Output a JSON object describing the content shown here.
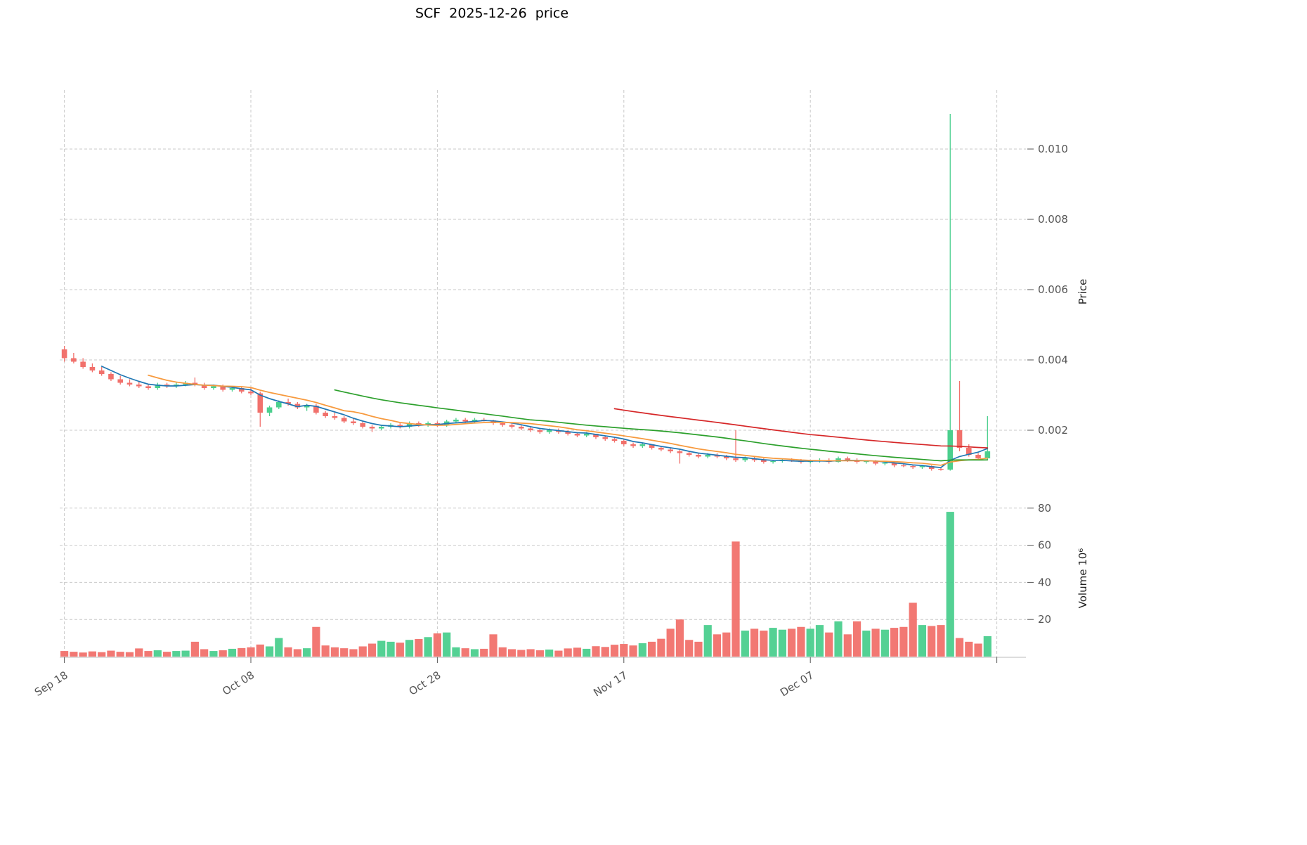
{
  "title": "SCF  2025-12-26  price",
  "colors": {
    "up": "#4bcf8e",
    "down": "#f1716c",
    "grid": "#c9c9c9",
    "axis_text": "#555555",
    "spine": "#bbbbbb",
    "background": "#ffffff"
  },
  "chart_data": {
    "type": "candlestick+volume",
    "title": "SCF  2025-12-26  price",
    "legend_position": "none",
    "grid": true,
    "price_axis": {
      "label": "Price",
      "side": "right",
      "ticks": [
        0.002,
        0.004,
        0.006,
        0.008,
        0.01
      ],
      "ylim": [
        0.0002,
        0.0117
      ]
    },
    "volume_axis": {
      "label": "Volume  10⁶",
      "side": "right",
      "ticks": [
        20,
        40,
        60,
        80
      ],
      "ylim": [
        0,
        83
      ]
    },
    "x_ticks": [
      {
        "index": 0,
        "label": "Sep 18"
      },
      {
        "index": 20,
        "label": "Oct 08"
      },
      {
        "index": 40,
        "label": "Oct 28"
      },
      {
        "index": 60,
        "label": "Nov 17"
      },
      {
        "index": 80,
        "label": "Dec 07"
      },
      {
        "index": 100,
        "label": ""
      }
    ],
    "price_unit": 0.0001,
    "volume_unit": "millions",
    "fields": [
      "open",
      "high",
      "low",
      "close",
      "volume_millions"
    ],
    "candles": [
      [
        43,
        44,
        39.5,
        40.5,
        3
      ],
      [
        40.5,
        42,
        39,
        39.5,
        2.6
      ],
      [
        39.5,
        40.5,
        37.5,
        38,
        2.2
      ],
      [
        38,
        39,
        36.5,
        37,
        2.8
      ],
      [
        37,
        38,
        35.5,
        36,
        2.4
      ],
      [
        36,
        36.5,
        34,
        34.5,
        3.2
      ],
      [
        34.5,
        35.5,
        33,
        33.5,
        2.6
      ],
      [
        33.5,
        34.5,
        32.5,
        33,
        2.4
      ],
      [
        33,
        34,
        32,
        32.5,
        4.4
      ],
      [
        32.5,
        33,
        31.5,
        32,
        3
      ],
      [
        32,
        33.5,
        31.5,
        33,
        3.4
      ],
      [
        33,
        33.5,
        32,
        32.5,
        2.6
      ],
      [
        32.5,
        33.5,
        32,
        33,
        3
      ],
      [
        33,
        34,
        32.5,
        33.5,
        3.2
      ],
      [
        33.5,
        35,
        32.5,
        33,
        8
      ],
      [
        33,
        33.5,
        31.5,
        32,
        4
      ],
      [
        32,
        33,
        31.5,
        32.5,
        3
      ],
      [
        32.5,
        33,
        31,
        31.5,
        3.4
      ],
      [
        31.5,
        32.5,
        31,
        32,
        4.2
      ],
      [
        32,
        32.5,
        30.5,
        31,
        4.6
      ],
      [
        31,
        32,
        30,
        30.5,
        5
      ],
      [
        30.5,
        31,
        21,
        25,
        6.5
      ],
      [
        25,
        27,
        24,
        26.5,
        5.5
      ],
      [
        26.5,
        28.5,
        26,
        28,
        10
      ],
      [
        28,
        29,
        27,
        27.5,
        5
      ],
      [
        27.5,
        28,
        26,
        26.5,
        4
      ],
      [
        26.5,
        27.5,
        25.5,
        27,
        4.5
      ],
      [
        27,
        27.5,
        24.5,
        25,
        16
      ],
      [
        25,
        25.5,
        23.5,
        24,
        6
      ],
      [
        24,
        25,
        23,
        23.5,
        5
      ],
      [
        23.5,
        24,
        22,
        22.5,
        4.5
      ],
      [
        22.5,
        23.5,
        21.5,
        22,
        4
      ],
      [
        22,
        22.5,
        20.5,
        21,
        5.5
      ],
      [
        21,
        21.5,
        19.5,
        20.5,
        7
      ],
      [
        20.5,
        21.5,
        20,
        21,
        8.5
      ],
      [
        21,
        22,
        20.5,
        21.5,
        8
      ],
      [
        21.5,
        22,
        20.5,
        21,
        7.5
      ],
      [
        21,
        22.5,
        20.5,
        22,
        9
      ],
      [
        22,
        22.5,
        21,
        21.5,
        9.5
      ],
      [
        21.5,
        22.5,
        21,
        22,
        10.5
      ],
      [
        22,
        22.5,
        21,
        21.5,
        12.5
      ],
      [
        21.5,
        23,
        21,
        22.5,
        13
      ],
      [
        22.5,
        23.5,
        22,
        23,
        5
      ],
      [
        23,
        23.5,
        22,
        22.5,
        4.5
      ],
      [
        22.5,
        23.5,
        22,
        23,
        4
      ],
      [
        23,
        23.5,
        22.5,
        22.8,
        4.2
      ],
      [
        22.8,
        23,
        21.5,
        22,
        12
      ],
      [
        22,
        22.5,
        21,
        21.5,
        5
      ],
      [
        21.5,
        22,
        20.5,
        21,
        4
      ],
      [
        21,
        21.5,
        20,
        20.5,
        3.6
      ],
      [
        20.5,
        21,
        19.5,
        20,
        4
      ],
      [
        20,
        20.5,
        19,
        19.5,
        3.4
      ],
      [
        19.5,
        20.5,
        19,
        20,
        3.8
      ],
      [
        20,
        20.5,
        19,
        19.5,
        3.2
      ],
      [
        19.5,
        20,
        18.5,
        19,
        4.4
      ],
      [
        19,
        19.5,
        18,
        18.5,
        4.8
      ],
      [
        18.5,
        19.5,
        18,
        19,
        4.2
      ],
      [
        19,
        19,
        17.5,
        18,
        5.6
      ],
      [
        18,
        18.5,
        17,
        17.5,
        5.2
      ],
      [
        17.5,
        18,
        16.5,
        17,
        6.4
      ],
      [
        17,
        17.5,
        15.5,
        16,
        6.8
      ],
      [
        16,
        16.5,
        15,
        15.5,
        6
      ],
      [
        15.5,
        16.5,
        15,
        16,
        7.2
      ],
      [
        16,
        16,
        14.5,
        15,
        8
      ],
      [
        15,
        15.5,
        14,
        14.5,
        9.6
      ],
      [
        14.5,
        15,
        13.5,
        14,
        15
      ],
      [
        14,
        14.5,
        10.5,
        13.5,
        20
      ],
      [
        13.5,
        14,
        12.5,
        13,
        9
      ],
      [
        13,
        13.5,
        12,
        12.5,
        8
      ],
      [
        12.5,
        13.5,
        12,
        13,
        17
      ],
      [
        13,
        13.5,
        12,
        12.5,
        12
      ],
      [
        12.5,
        13,
        11.5,
        12,
        13
      ],
      [
        12,
        20,
        11,
        11.5,
        62
      ],
      [
        11.5,
        12.5,
        11,
        12,
        14
      ],
      [
        12,
        12.5,
        11,
        11.5,
        15
      ],
      [
        11.5,
        12,
        10.5,
        11,
        14
      ],
      [
        11,
        11.5,
        10.5,
        11.2,
        15.5
      ],
      [
        11.2,
        12,
        10.8,
        11.5,
        14.5
      ],
      [
        11.5,
        12,
        11,
        11.2,
        15
      ],
      [
        11.2,
        11.8,
        10.5,
        11,
        16
      ],
      [
        11,
        11.5,
        10.5,
        11.2,
        15
      ],
      [
        11.2,
        12,
        10.8,
        11.5,
        17
      ],
      [
        11.5,
        12,
        10.5,
        11,
        13
      ],
      [
        11,
        12.5,
        10.8,
        12,
        19
      ],
      [
        12,
        12.5,
        11,
        11.5,
        12
      ],
      [
        11.5,
        12,
        10.5,
        11,
        19
      ],
      [
        11,
        11.5,
        10.5,
        11.2,
        14
      ],
      [
        11.2,
        11.5,
        10,
        10.5,
        15
      ],
      [
        10.5,
        11,
        10,
        10.8,
        14.5
      ],
      [
        10.8,
        11,
        9.5,
        10,
        15.5
      ],
      [
        10,
        10.5,
        9.5,
        9.8,
        16
      ],
      [
        9.8,
        10.2,
        9,
        9.5,
        29
      ],
      [
        9.5,
        10,
        9,
        9.8,
        17
      ],
      [
        9.8,
        10,
        8.5,
        9,
        16.5
      ],
      [
        9,
        9.5,
        8.5,
        8.8,
        17
      ],
      [
        8.8,
        110,
        8.5,
        20,
        78
      ],
      [
        20,
        34,
        14,
        15,
        10
      ],
      [
        15,
        16,
        12.5,
        13,
        8
      ],
      [
        13,
        13.5,
        11.5,
        12,
        7
      ],
      [
        12,
        24,
        11.5,
        14,
        11
      ]
    ],
    "moving_averages": [
      {
        "window": 5,
        "color": "#1f77b4"
      },
      {
        "window": 10,
        "color": "#f79a3e"
      },
      {
        "window": 30,
        "color": "#2ca02c"
      },
      {
        "window": 60,
        "color": "#d62728"
      }
    ]
  }
}
